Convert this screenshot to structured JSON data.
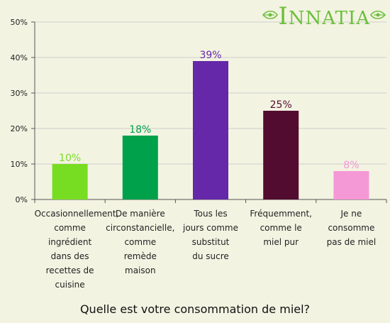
{
  "logo": {
    "text": "INNATIA"
  },
  "colors": {
    "background": "#f3f3e2",
    "axis": "#555555",
    "grid": "#cccccc",
    "brand": "#6cbf3c"
  },
  "chart_data": {
    "type": "bar",
    "caption": "Quelle est votre consommation de miel?",
    "categories": [
      "Occasionnellement,\ncomme\ningrédient\ndans des\nrecettes de\ncuisine",
      "De manière\ncirconstancielle,\ncomme\nremède\nmaison",
      "Tous les\njours comme\nsubstitut\ndu sucre",
      "Fréquemment,\ncomme le\nmiel pur",
      "Je ne\nconsomme\npas de miel"
    ],
    "values": [
      10,
      18,
      39,
      25,
      8
    ],
    "value_labels": [
      "10%",
      "18%",
      "39%",
      "25%",
      "8%"
    ],
    "bar_colors": [
      "#77dd22",
      "#00a14b",
      "#6428a8",
      "#520c30",
      "#f598d6"
    ],
    "ylim": [
      0,
      50
    ],
    "yticks": [
      0,
      10,
      20,
      30,
      40,
      50
    ],
    "ytick_labels": [
      "0%",
      "10%",
      "20%",
      "30%",
      "40%",
      "50%"
    ],
    "grid": true,
    "legend": "none"
  }
}
